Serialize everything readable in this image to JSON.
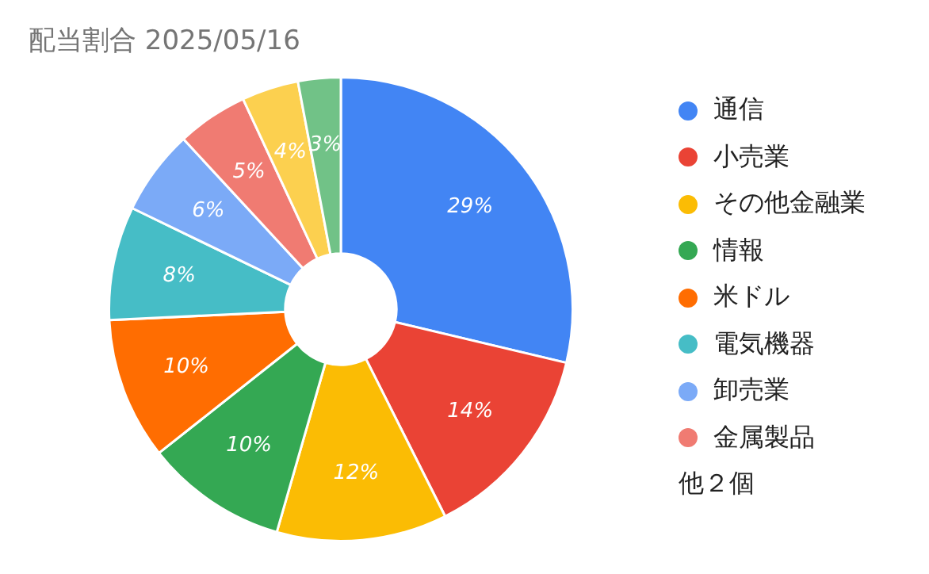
{
  "chart_data": {
    "type": "donut",
    "title": "配当割合 2025/05/16",
    "categories": [
      "通信",
      "小売業",
      "その他金融業",
      "情報",
      "米ドル",
      "電気機器",
      "卸売業",
      "金属製品",
      null,
      null
    ],
    "values": [
      29,
      14,
      12,
      10,
      10,
      8,
      6,
      5,
      4,
      3
    ],
    "value_labels": [
      "29%",
      "14%",
      "12%",
      "10%",
      "10%",
      "8%",
      "6%",
      "5%",
      "4%",
      "3%"
    ],
    "colors": [
      "#4285f4",
      "#ea4335",
      "#fbbc04",
      "#34a853",
      "#ff6d01",
      "#46bdc6",
      "#7baaf7",
      "#f07b72",
      "#fcd04f",
      "#71c287"
    ],
    "legend": "right",
    "annotations": [
      "他２個"
    ]
  }
}
